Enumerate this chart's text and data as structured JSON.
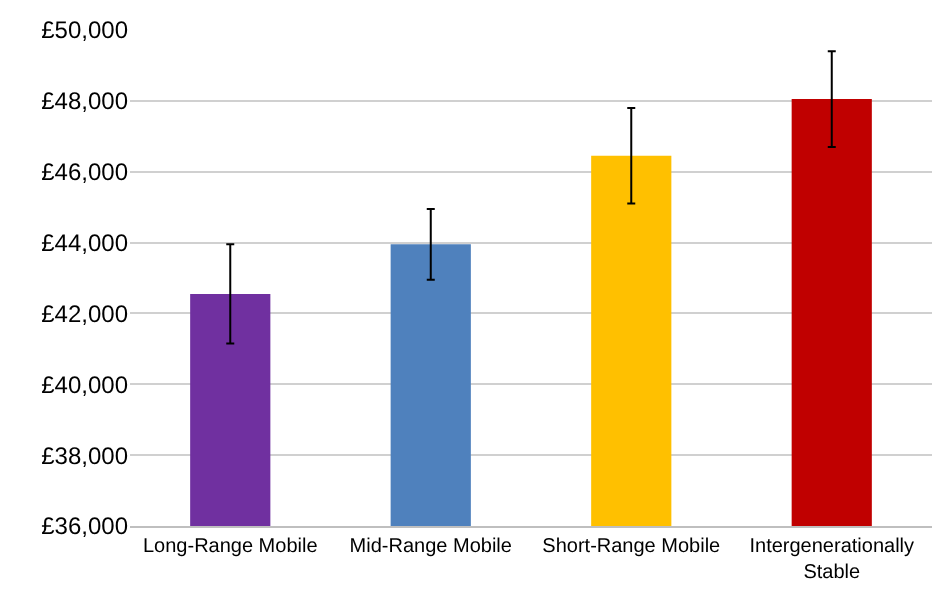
{
  "chart_data": {
    "type": "bar",
    "categories": [
      "Long-Range Mobile",
      "Mid-Range Mobile",
      "Short-Range Mobile",
      "Intergenerationally\nStable"
    ],
    "values": [
      42550,
      43950,
      46450,
      48050
    ],
    "errors": [
      1400,
      1000,
      1350,
      1350
    ],
    "colors": [
      "#7030a0",
      "#4f81bd",
      "#ffc000",
      "#c00000"
    ],
    "ylim": [
      36000,
      50000
    ],
    "yticks": [
      {
        "value": 36000,
        "label": "£36,000"
      },
      {
        "value": 38000,
        "label": "£38,000"
      },
      {
        "value": 40000,
        "label": "£40,000"
      },
      {
        "value": 42000,
        "label": "£42,000"
      },
      {
        "value": 44000,
        "label": "£44,000"
      },
      {
        "value": 46000,
        "label": "£46,000"
      },
      {
        "value": 48000,
        "label": "£48,000"
      },
      {
        "value": 50000,
        "label": "£50,000"
      }
    ],
    "grid": "y"
  }
}
